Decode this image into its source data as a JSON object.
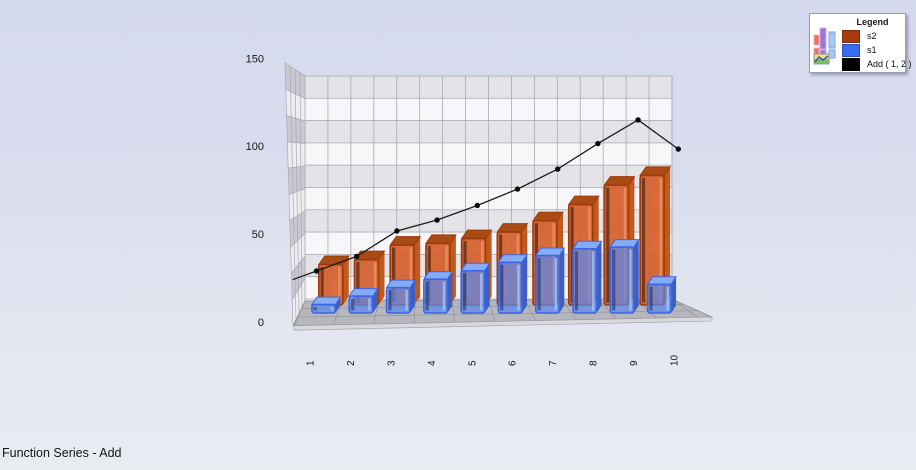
{
  "title": {
    "text": "Function Series - Add"
  },
  "legend": {
    "title": "Legend",
    "entries": [
      {
        "label": "s2",
        "color": "#a63c0e"
      },
      {
        "label": "s1",
        "color": "#3a6af0"
      },
      {
        "label": "Add ( 1, 2 )",
        "color": "#000000"
      }
    ]
  },
  "chart_data": {
    "type": "bar",
    "projection": "3d",
    "title": "Function Series - Add",
    "xlabel": "",
    "ylabel": "",
    "categories": [
      "1",
      "2",
      "3",
      "4",
      "5",
      "6",
      "7",
      "8",
      "9",
      "10"
    ],
    "yticks": [
      0,
      50,
      100,
      150
    ],
    "ylim": [
      0,
      150
    ],
    "grid": true,
    "legend_position": "top-right",
    "series": [
      {
        "name": "s1",
        "type": "bar",
        "color": "#5b87e8",
        "values": [
          5,
          10,
          15,
          20,
          25,
          30,
          34,
          38,
          39,
          17
        ]
      },
      {
        "name": "s2",
        "type": "bar",
        "color": "#cf5f2e",
        "values": [
          25,
          28,
          37,
          38,
          41,
          45,
          52,
          62,
          74,
          80
        ]
      },
      {
        "name": "Add ( 1, 2 )",
        "type": "line",
        "color": "#1c1c1c",
        "values": [
          30,
          38,
          52,
          58,
          66,
          75,
          86,
          100,
          113,
          97
        ]
      }
    ]
  },
  "colors": {
    "background_top": "#d6daef",
    "background_bottom": "#e9ecf1",
    "wall_band_gray": "#e3e3e8",
    "wall_band_white": "#f7f7f9",
    "side_wall_gray": "#c9c9d2",
    "side_wall_white": "#ededf2",
    "floor": "#b6b6bd",
    "gridline": "#a9a9b1",
    "bar_orange_front": "#cf5f2e",
    "bar_orange_border": "#9c3a0c",
    "bar_orange_top": "#a94b13",
    "bar_blue_front": "#5b87e8",
    "bar_blue_border": "#3a66e8",
    "bar_blue_top": "#85acf5",
    "line": "#1c1c1c"
  }
}
